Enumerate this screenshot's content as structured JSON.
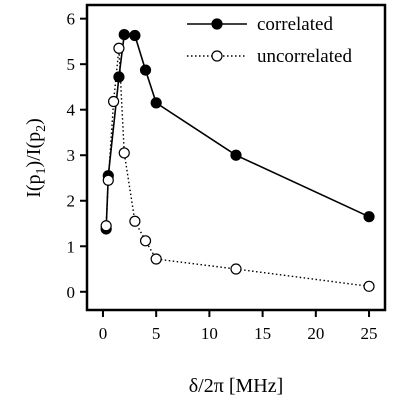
{
  "chart_data": {
    "type": "line",
    "title": "",
    "xlabel": "δ/2π [MHz]",
    "ylabel": "I(p1)/I(p2)",
    "ylabel_parts": {
      "pre1": "I(p",
      "sub1": "1",
      "mid": ")/I(p",
      "sub2": "2",
      "post": ")"
    },
    "xlim": [
      -1.5,
      26.5
    ],
    "ylim": [
      -0.4,
      6.3
    ],
    "xticks": [
      0,
      5,
      10,
      15,
      20,
      25
    ],
    "yticks": [
      0,
      1,
      2,
      3,
      4,
      5,
      6
    ],
    "grid": false,
    "legend_position": "top-right",
    "series": [
      {
        "name": "correlated",
        "style": "solid",
        "marker": "filled-circle",
        "color": "#000000",
        "x": [
          0.3,
          0.5,
          1.5,
          2.0,
          3.0,
          4.0,
          5.0,
          12.5,
          25.0
        ],
        "y": [
          1.38,
          2.55,
          4.72,
          5.65,
          5.63,
          4.87,
          4.15,
          3.0,
          1.65
        ]
      },
      {
        "name": "uncorrelated",
        "style": "dotted",
        "marker": "open-circle",
        "color": "#000000",
        "x": [
          0.3,
          0.5,
          1.0,
          1.5,
          2.0,
          3.0,
          4.0,
          5.0,
          12.5,
          25.0
        ],
        "y": [
          1.45,
          2.45,
          4.18,
          5.35,
          3.05,
          1.55,
          1.12,
          0.72,
          0.5,
          0.12
        ]
      }
    ]
  }
}
